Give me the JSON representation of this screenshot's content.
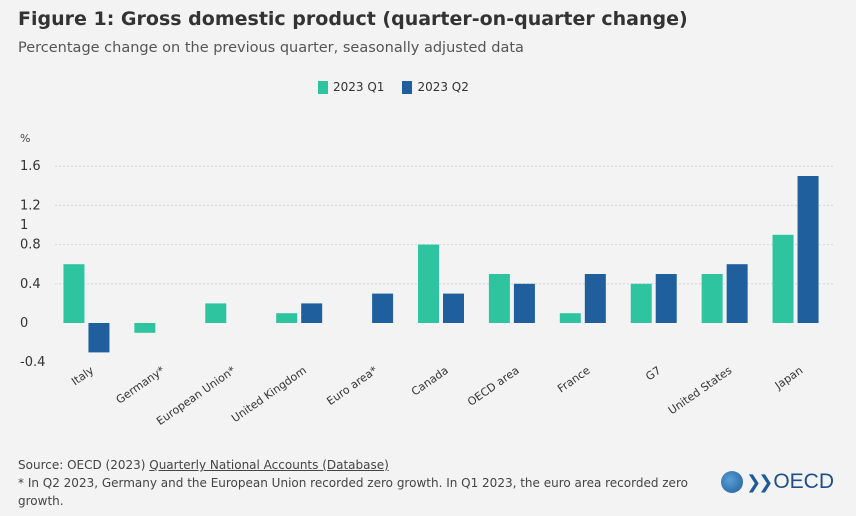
{
  "header": {
    "title": "Figure 1: Gross domestic product (quarter-on-quarter change)",
    "subtitle": "Percentage change on the previous quarter, seasonally adjusted data"
  },
  "footer": {
    "source_prefix": "Source: OECD (2023) ",
    "source_link": "Quarterly National Accounts (Database)",
    "note": "* In Q2 2023, Germany and the European Union recorded zero growth. In Q1 2023, the euro area recorded zero growth.",
    "logo_text": "OECD"
  },
  "colors": {
    "q1": "#2ec4a0",
    "q2": "#1f5f9e"
  },
  "chart_data": {
    "type": "bar",
    "ylabel": "%",
    "ylim": [
      -0.4,
      1.6
    ],
    "yticks": [
      -0.4,
      0,
      0.4,
      0.8,
      1,
      1.2,
      1.6
    ],
    "grid": true,
    "legend_position": "top-center",
    "categories": [
      "Italy",
      "Germany*",
      "European Union*",
      "United Kingdom",
      "Euro area*",
      "Canada",
      "OECD area",
      "France",
      "G7",
      "United States",
      "Japan"
    ],
    "series": [
      {
        "name": "2023 Q1",
        "values": [
          0.6,
          -0.1,
          0.2,
          0.1,
          0.0,
          0.8,
          0.5,
          0.1,
          0.4,
          0.5,
          0.9
        ]
      },
      {
        "name": "2023 Q2",
        "values": [
          -0.3,
          0.0,
          0.0,
          0.2,
          0.3,
          0.3,
          0.4,
          0.5,
          0.5,
          0.6,
          1.5
        ]
      }
    ]
  }
}
